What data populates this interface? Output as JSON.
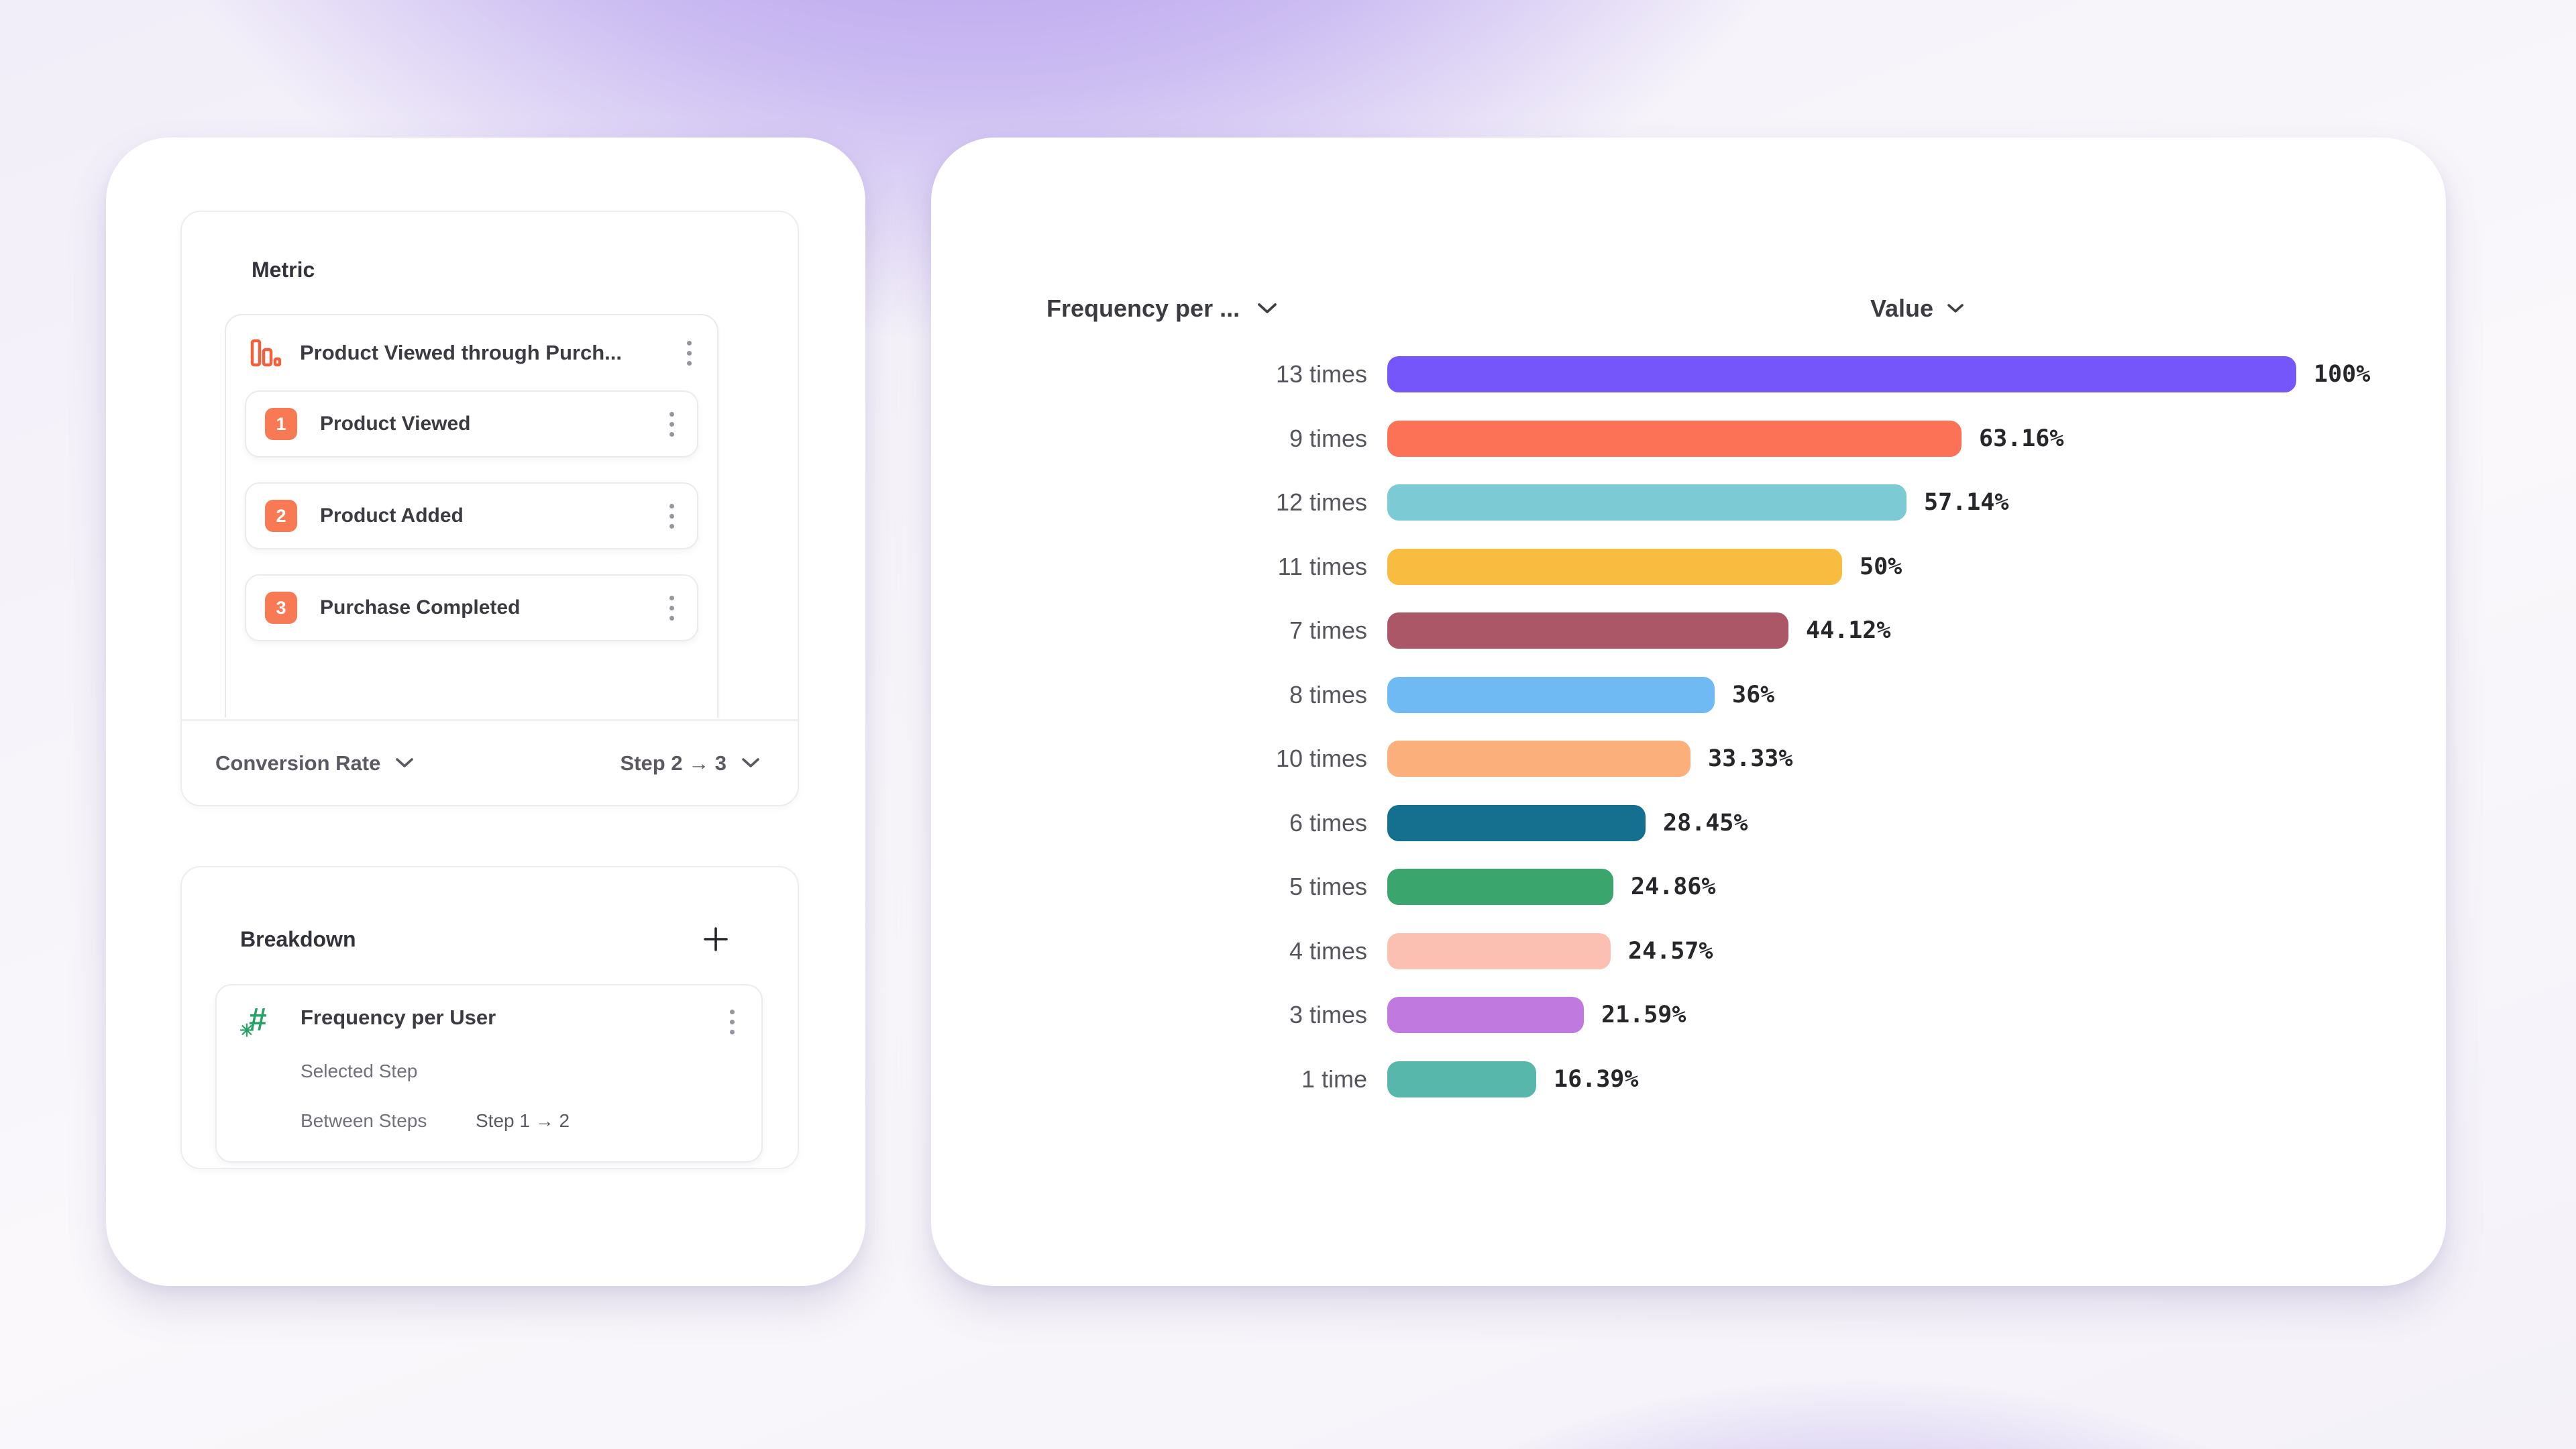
{
  "left_panel": {
    "metric": {
      "title": "Metric",
      "event": {
        "name": "Product Viewed through Purch...",
        "icon": "funnel-bars-icon"
      },
      "steps": [
        {
          "number": "1",
          "label": "Product Viewed"
        },
        {
          "number": "2",
          "label": "Product Added"
        },
        {
          "number": "3",
          "label": "Purchase Completed"
        }
      ],
      "measurement": {
        "label": "Conversion Rate",
        "step_range": "Step 2 → 3"
      }
    },
    "breakdown": {
      "title": "Breakdown",
      "add_label": "+",
      "property": {
        "name": "Frequency per User",
        "icon": "hash-icon",
        "selected_step_label": "Selected Step",
        "between_steps_label": "Between Steps",
        "between_steps_value": "Step 1 → 2"
      }
    }
  },
  "chart_data": {
    "type": "bar",
    "orientation": "horizontal",
    "title": "",
    "column_headers": {
      "category": "Frequency per ...",
      "value": "Value"
    },
    "categories": [
      "13 times",
      "9 times",
      "12 times",
      "11 times",
      "7 times",
      "8 times",
      "10 times",
      "6 times",
      "5 times",
      "4 times",
      "3 times",
      "1 time"
    ],
    "values": [
      100,
      63.16,
      57.14,
      50,
      44.12,
      36,
      33.33,
      28.45,
      24.86,
      24.57,
      21.59,
      16.39
    ],
    "value_labels": [
      "100%",
      "63.16%",
      "57.14%",
      "50%",
      "44.12%",
      "36%",
      "33.33%",
      "28.45%",
      "24.86%",
      "24.57%",
      "21.59%",
      "16.39%"
    ],
    "bar_colors": [
      "#7456fb",
      "#fc7257",
      "#7ccbd4",
      "#f8bc40",
      "#ac5767",
      "#70baf4",
      "#fbaf7b",
      "#15708f",
      "#3aa56d",
      "#fcc0b2",
      "#c079de",
      "#57b7aa"
    ],
    "xlim": [
      0,
      100
    ],
    "grid": false,
    "legend": false
  },
  "colors": {
    "accent_orange": "#f87a54",
    "accent_green": "#28a368",
    "background_purple": "#9b7de9"
  }
}
